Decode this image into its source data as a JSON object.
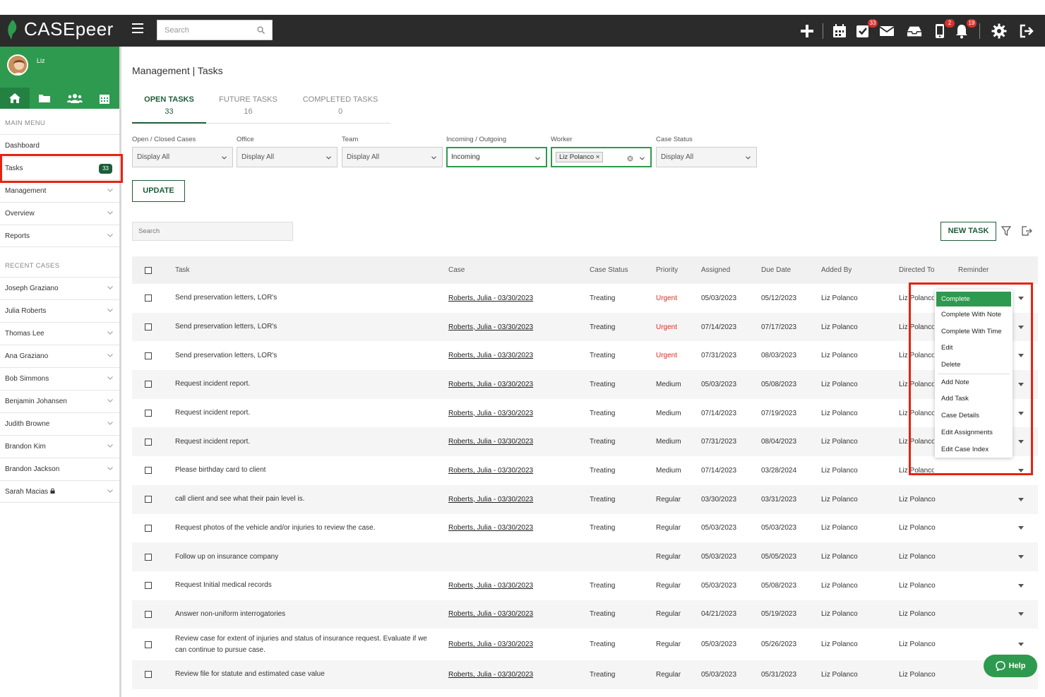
{
  "app": {
    "brand": "CASEpeer"
  },
  "topbar": {
    "search_placeholder": "Search",
    "tasks_badge": "33",
    "phone_badge": "2",
    "notifications_badge": "19"
  },
  "sidebar": {
    "user_name": "Liz",
    "main_menu_label": "MAIN MENU",
    "main_items": [
      {
        "label": "Dashboard"
      },
      {
        "label": "Tasks",
        "badge": "33"
      },
      {
        "label": "Management"
      },
      {
        "label": "Overview"
      },
      {
        "label": "Reports"
      }
    ],
    "recent_label": "RECENT CASES",
    "recent_items": [
      {
        "label": "Joseph Graziano"
      },
      {
        "label": "Julia Roberts"
      },
      {
        "label": "Thomas Lee"
      },
      {
        "label": "Ana Graziano"
      },
      {
        "label": "Bob Simmons"
      },
      {
        "label": "Benjamin Johansen"
      },
      {
        "label": "Judith Browne"
      },
      {
        "label": "Brandon Kim"
      },
      {
        "label": "Brandon Jackson"
      },
      {
        "label": "Sarah Macias"
      }
    ]
  },
  "page": {
    "title": "Management | Tasks",
    "tabs": [
      {
        "label": "OPEN TASKS",
        "count": "33"
      },
      {
        "label": "FUTURE TASKS",
        "count": "16"
      },
      {
        "label": "COMPLETED TASKS",
        "count": "0"
      }
    ],
    "filters": [
      {
        "label": "Open / Closed Cases",
        "value": "Display All"
      },
      {
        "label": "Office",
        "value": "Display All"
      },
      {
        "label": "Team",
        "value": "Display All"
      },
      {
        "label": "Incoming / Outgoing",
        "value": "Incoming"
      },
      {
        "label": "Worker",
        "value": "Liz Polanco"
      },
      {
        "label": "Case Status",
        "value": "Display All"
      }
    ],
    "update_label": "UPDATE",
    "list_search_placeholder": "Search",
    "new_task_label": "NEW TASK"
  },
  "table": {
    "headers": {
      "task": "Task",
      "case": "Case",
      "case_status": "Case Status",
      "priority": "Priority",
      "assigned": "Assigned",
      "due_date": "Due Date",
      "added_by": "Added By",
      "directed_to": "Directed To",
      "reminder": "Reminder"
    },
    "rows": [
      {
        "task": "Send preservation letters, LOR's",
        "case": "Roberts, Julia - 03/30/2023",
        "status": "Treating",
        "priority": "Urgent",
        "assigned": "05/03/2023",
        "due": "05/12/2023",
        "added_by": "Liz Polanco",
        "directed_to": "Liz Polanco"
      },
      {
        "task": "Send preservation letters, LOR's",
        "case": "Roberts, Julia - 03/30/2023",
        "status": "Treating",
        "priority": "Urgent",
        "assigned": "07/14/2023",
        "due": "07/17/2023",
        "added_by": "Liz Polanco",
        "directed_to": "Liz Polanco"
      },
      {
        "task": "Send preservation letters, LOR's",
        "case": "Roberts, Julia - 03/30/2023",
        "status": "Treating",
        "priority": "Urgent",
        "assigned": "07/31/2023",
        "due": "08/03/2023",
        "added_by": "Liz Polanco",
        "directed_to": "Liz Polanco"
      },
      {
        "task": "Request incident report.",
        "case": "Roberts, Julia - 03/30/2023",
        "status": "Treating",
        "priority": "Medium",
        "assigned": "05/03/2023",
        "due": "05/08/2023",
        "added_by": "Liz Polanco",
        "directed_to": "Liz Polanco"
      },
      {
        "task": "Request incident report.",
        "case": "Roberts, Julia - 03/30/2023",
        "status": "Treating",
        "priority": "Medium",
        "assigned": "07/14/2023",
        "due": "07/19/2023",
        "added_by": "Liz Polanco",
        "directed_to": "Liz Polanco"
      },
      {
        "task": "Request incident report.",
        "case": "Roberts, Julia - 03/30/2023",
        "status": "Treating",
        "priority": "Medium",
        "assigned": "07/31/2023",
        "due": "08/04/2023",
        "added_by": "Liz Polanco",
        "directed_to": "Liz Polanco"
      },
      {
        "task": "Please birthday card to client",
        "case": "Roberts, Julia - 03/30/2023",
        "status": "Treating",
        "priority": "Medium",
        "assigned": "07/14/2023",
        "due": "03/28/2024",
        "added_by": "Liz Polanco",
        "directed_to": "Liz Polanco"
      },
      {
        "task": "call client and see what their pain level is.",
        "case": "Roberts, Julia - 03/30/2023",
        "status": "Treating",
        "priority": "Regular",
        "assigned": "03/30/2023",
        "due": "03/31/2023",
        "added_by": "Liz Polanco",
        "directed_to": "Liz Polanco"
      },
      {
        "task": "Request photos of the vehicle and/or injuries to review the case.",
        "case": "Roberts, Julia - 03/30/2023",
        "status": "Treating",
        "priority": "Regular",
        "assigned": "05/03/2023",
        "due": "05/03/2023",
        "added_by": "Liz Polanco",
        "directed_to": "Liz Polanco"
      },
      {
        "task": "Follow up on insurance company",
        "case": "",
        "status": "",
        "priority": "Regular",
        "assigned": "05/03/2023",
        "due": "05/05/2023",
        "added_by": "Liz Polanco",
        "directed_to": "Liz Polanco"
      },
      {
        "task": "Request Initial medical records",
        "case": "Roberts, Julia - 03/30/2023",
        "status": "Treating",
        "priority": "Regular",
        "assigned": "05/03/2023",
        "due": "05/08/2023",
        "added_by": "Liz Polanco",
        "directed_to": "Liz Polanco"
      },
      {
        "task": "Answer non-uniform interrogatories",
        "case": "Roberts, Julia - 03/30/2023",
        "status": "Treating",
        "priority": "Regular",
        "assigned": "04/21/2023",
        "due": "05/19/2023",
        "added_by": "Liz Polanco",
        "directed_to": "Liz Polanco"
      },
      {
        "task": "Review case for extent of injuries and status of insurance request. Evaluate if we can continue to pursue case.",
        "case": "Roberts, Julia - 03/30/2023",
        "status": "Treating",
        "priority": "Regular",
        "assigned": "05/03/2023",
        "due": "05/26/2023",
        "added_by": "Liz Polanco",
        "directed_to": "Liz Polanco"
      },
      {
        "task": "Review file for statute and estimated case value",
        "case": "Roberts, Julia - 03/30/2023",
        "status": "Treating",
        "priority": "Regular",
        "assigned": "05/03/2023",
        "due": "05/31/2023",
        "added_by": "Liz Polanco",
        "directed_to": "Liz Polanco"
      }
    ]
  },
  "dropdown": {
    "items": [
      "Complete",
      "Complete With Note",
      "Complete With Time",
      "Edit",
      "Delete",
      "Add Note",
      "Add Task",
      "Case Details",
      "Edit Assignments",
      "Edit Case Index"
    ]
  },
  "help": {
    "label": "Help"
  },
  "colors": {
    "brand_green": "#2e9a4f",
    "dark_green": "#1e5d3a",
    "urgent_red": "#e02b20",
    "highlight_red": "#e8220f",
    "topbar": "#2b2b2b"
  }
}
